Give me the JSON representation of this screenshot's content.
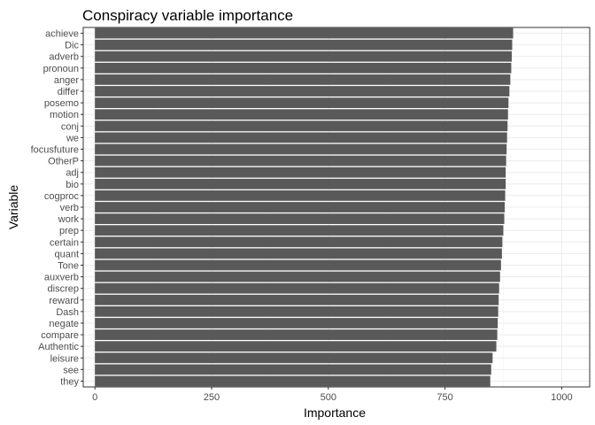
{
  "chart_data": {
    "type": "bar",
    "orientation": "horizontal",
    "title": "Conspiracy variable importance",
    "xlabel": "Importance",
    "ylabel": "Variable",
    "xlim": [
      -25,
      1060
    ],
    "xticks": [
      0,
      250,
      500,
      750,
      1000
    ],
    "xtick_labels": [
      "0",
      "250",
      "500",
      "750",
      "1000"
    ],
    "grid": true,
    "legend": "none",
    "bar_color": "#595959",
    "categories": [
      "achieve",
      "Dic",
      "adverb",
      "pronoun",
      "anger",
      "differ",
      "posemo",
      "motion",
      "conj",
      "we",
      "focusfuture",
      "OtherP",
      "adj",
      "bio",
      "cogproc",
      "verb",
      "work",
      "prep",
      "certain",
      "quant",
      "Tone",
      "auxverb",
      "discrep",
      "reward",
      "Dash",
      "negate",
      "compare",
      "Authentic",
      "leisure",
      "see",
      "they"
    ],
    "values": [
      896,
      894,
      893,
      892,
      890,
      888,
      886,
      885,
      884,
      883,
      882,
      881,
      880,
      880,
      879,
      878,
      877,
      875,
      873,
      872,
      870,
      868,
      866,
      865,
      864,
      863,
      862,
      860,
      852,
      849,
      847
    ]
  }
}
